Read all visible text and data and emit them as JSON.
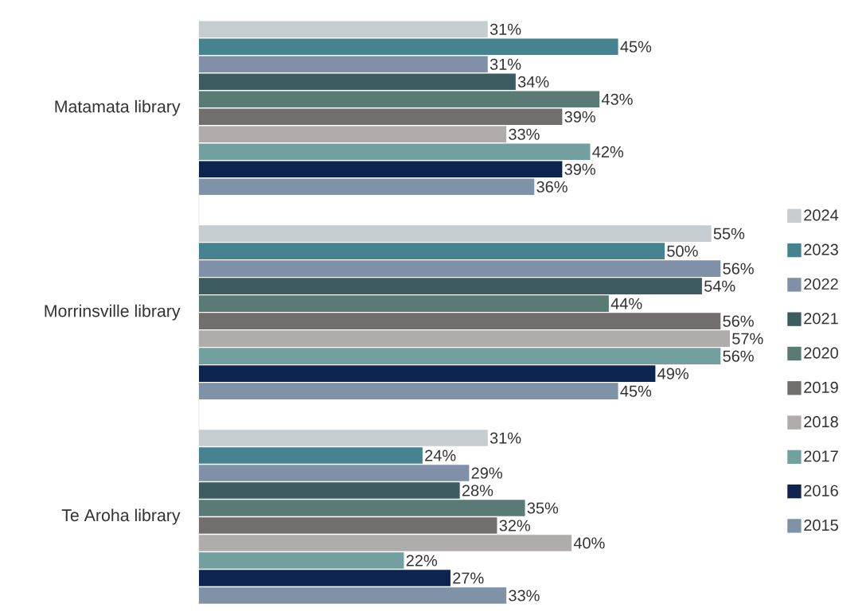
{
  "chart_data": {
    "type": "bar",
    "orientation": "horizontal",
    "categories": [
      "Matamata library",
      "Morrinsville library",
      "Te Aroha library"
    ],
    "tick_labels": "y",
    "legend": "right",
    "series": [
      {
        "name": "2024",
        "color": "#c5cdd0",
        "values": [
          31,
          55,
          31
        ],
        "value_labels": [
          "31%",
          "55%",
          "31%"
        ]
      },
      {
        "name": "2023",
        "color": "#468290",
        "values": [
          45,
          50,
          24
        ],
        "value_labels": [
          "45%",
          "50%",
          "24%"
        ]
      },
      {
        "name": "2022",
        "color": "#7f90a8",
        "values": [
          31,
          56,
          29
        ],
        "value_labels": [
          "31%",
          "56%",
          "29%"
        ]
      },
      {
        "name": "2021",
        "color": "#3d5c62",
        "values": [
          34,
          54,
          28
        ],
        "value_labels": [
          "34%",
          "54%",
          "28%"
        ]
      },
      {
        "name": "2020",
        "color": "#5a7a76",
        "values": [
          43,
          44,
          35
        ],
        "value_labels": [
          "43%",
          "44%",
          "35%"
        ]
      },
      {
        "name": "2019",
        "color": "#726e6e",
        "values": [
          39,
          56,
          32
        ],
        "value_labels": [
          "39%",
          "56%",
          "32%"
        ]
      },
      {
        "name": "2018",
        "color": "#b0acab",
        "values": [
          33,
          57,
          40
        ],
        "value_labels": [
          "33%",
          "57%",
          "40%"
        ]
      },
      {
        "name": "2017",
        "color": "#72a0a0",
        "values": [
          42,
          56,
          22
        ],
        "value_labels": [
          "42%",
          "56%",
          "22%"
        ]
      },
      {
        "name": "2016",
        "color": "#0d2350",
        "values": [
          39,
          49,
          27
        ],
        "value_labels": [
          "39%",
          "49%",
          "27%"
        ]
      },
      {
        "name": "2015",
        "color": "#8092a8",
        "values": [
          36,
          45,
          33
        ],
        "value_labels": [
          "36%",
          "45%",
          "33%"
        ]
      }
    ]
  }
}
